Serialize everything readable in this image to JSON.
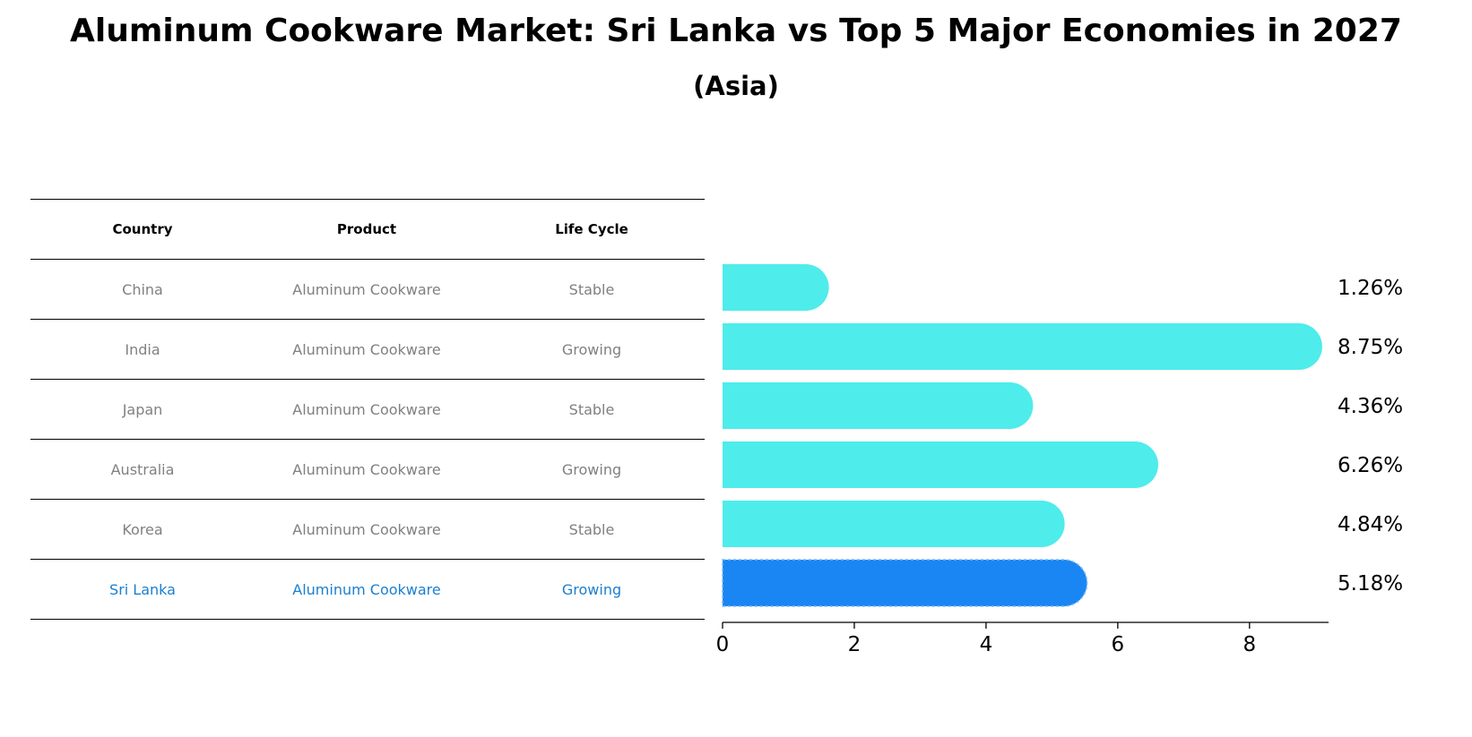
{
  "title": "Aluminum Cookware Market: Sri Lanka vs Top 5 Major Economies in 2027",
  "subtitle": "(Asia)",
  "table": {
    "headers": [
      "Country",
      "Product",
      "Life Cycle"
    ],
    "rows": [
      [
        "China",
        "Aluminum Cookware",
        "Stable"
      ],
      [
        "India",
        "Aluminum Cookware",
        "Growing"
      ],
      [
        "Japan",
        "Aluminum Cookware",
        "Stable"
      ],
      [
        "Australia",
        "Aluminum Cookware",
        "Growing"
      ],
      [
        "Korea",
        "Aluminum Cookware",
        "Stable"
      ],
      [
        "Sri Lanka",
        "Aluminum Cookware",
        "Growing"
      ]
    ],
    "highlight_row": 5,
    "highlight_color": "#1a7fd0"
  },
  "chart_data": {
    "type": "bar",
    "orientation": "horizontal",
    "categories": [
      "China",
      "India",
      "Japan",
      "Australia",
      "Korea",
      "Sri Lanka"
    ],
    "values": [
      1.26,
      8.75,
      4.36,
      6.26,
      4.84,
      5.18
    ],
    "value_labels": [
      "1.26%",
      "8.75%",
      "4.36%",
      "6.26%",
      "4.84%",
      "5.18%"
    ],
    "xlim": [
      0,
      9.2
    ],
    "xticks": [
      "0",
      "2",
      "4",
      "6",
      "8"
    ],
    "grid": false,
    "bar_color": "#4eeceb",
    "highlight_color": "#1a86f3",
    "highlight_index": 5
  }
}
